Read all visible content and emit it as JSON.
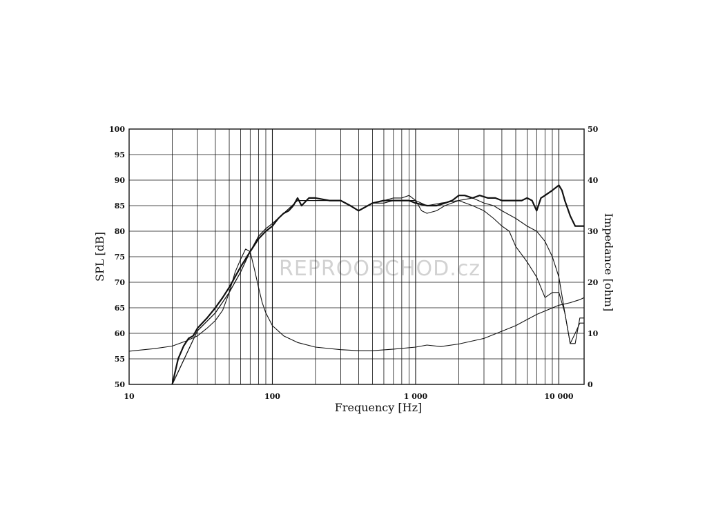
{
  "watermark": "REPROOBCHOD.cz",
  "chart_data": {
    "type": "line",
    "title": "",
    "xlabel": "Frequency [Hz]",
    "ylabel": "SPL [dB]",
    "y2label": "Impedance [ohm]",
    "xscale": "log",
    "xlim": [
      10,
      15000
    ],
    "ylim": [
      50,
      100
    ],
    "y2lim": [
      0,
      50
    ],
    "grid": true,
    "legend": "none",
    "x_tick_labels": [
      {
        "value": 10,
        "label": "10"
      },
      {
        "value": 100,
        "label": "100"
      },
      {
        "value": 1000,
        "label": "1 000"
      },
      {
        "value": 10000,
        "label": "10 000"
      }
    ],
    "y_tick_labels": [
      "50",
      "55",
      "60",
      "65",
      "70",
      "75",
      "80",
      "85",
      "90",
      "95",
      "100"
    ],
    "y2_tick_labels": [
      "0",
      "10",
      "20",
      "30",
      "40",
      "50"
    ],
    "series": [
      {
        "axis": "left",
        "style": "thick",
        "x": [
          20,
          22,
          24,
          26,
          28,
          30,
          35,
          40,
          45,
          50,
          60,
          70,
          80,
          90,
          100,
          110,
          120,
          130,
          140,
          150,
          160,
          180,
          200,
          250,
          300,
          350,
          400,
          500,
          600,
          700,
          800,
          900,
          1000,
          1200,
          1400,
          1600,
          1800,
          2000,
          2200,
          2500,
          2800,
          3200,
          3600,
          4000,
          4500,
          5000,
          5500,
          6000,
          6500,
          7000,
          7500,
          8000,
          9000,
          10000,
          10500,
          11000,
          12000,
          13000,
          14000,
          15000
        ],
        "y": [
          50,
          55,
          57.5,
          59,
          59.5,
          61,
          63,
          65,
          67,
          69,
          73,
          76,
          78.5,
          80,
          81,
          82.5,
          83.5,
          84,
          85,
          86.5,
          85,
          86.5,
          86.5,
          86,
          86,
          85,
          84,
          85.5,
          86,
          86,
          86,
          86,
          85.5,
          85,
          85,
          85.5,
          86,
          87,
          87,
          86.5,
          87,
          86.5,
          86.5,
          86,
          86,
          86,
          86,
          86.5,
          86,
          84,
          86.5,
          87,
          88,
          89,
          88,
          86,
          83,
          81,
          81,
          81
        ]
      },
      {
        "axis": "left",
        "style": "thin",
        "x": [
          20,
          30,
          40,
          50,
          60,
          70,
          80,
          90,
          100,
          120,
          150,
          200,
          300,
          400,
          500,
          600,
          700,
          800,
          900,
          1000,
          1100,
          1200,
          1400,
          1600,
          2000,
          2500,
          3000,
          3500,
          4000,
          4500,
          5000,
          6000,
          7000,
          8000,
          9000,
          10000,
          11000,
          12000,
          13000,
          14000,
          15000
        ],
        "y": [
          50,
          60.5,
          64,
          68,
          72,
          76,
          79,
          80.5,
          81.5,
          83.5,
          86,
          86,
          86,
          84,
          85.5,
          86,
          86.5,
          86.5,
          87,
          86,
          84,
          83.5,
          84,
          85,
          86,
          85,
          84,
          82.5,
          81,
          80,
          77,
          74,
          71,
          67,
          68,
          68,
          64,
          58,
          58,
          63,
          63
        ]
      },
      {
        "axis": "left",
        "style": "thin",
        "x": [
          20,
          30,
          40,
          50,
          60,
          70,
          80,
          90,
          100,
          120,
          150,
          200,
          300,
          400,
          500,
          600,
          700,
          800,
          900,
          1000,
          1200,
          1500,
          2000,
          2500,
          3000,
          3500,
          4000,
          5000,
          6000,
          7000,
          8000,
          9000,
          10000,
          11000,
          12000,
          13000,
          14000,
          15000
        ],
        "y": [
          50,
          60.5,
          64,
          68,
          72,
          76,
          79,
          80.5,
          81.5,
          83.5,
          86,
          86,
          86,
          84,
          85.5,
          85.5,
          86,
          86,
          86,
          86,
          85,
          85.5,
          86,
          86.5,
          85.5,
          85,
          84,
          82.5,
          81,
          80,
          78,
          75,
          71,
          64,
          58,
          60,
          62,
          62
        ]
      },
      {
        "axis": "right",
        "style": "thin",
        "x": [
          10,
          15,
          20,
          25,
          30,
          35,
          40,
          45,
          50,
          55,
          60,
          65,
          70,
          75,
          80,
          85,
          90,
          100,
          120,
          150,
          200,
          300,
          400,
          500,
          700,
          1000,
          1200,
          1500,
          2000,
          3000,
          5000,
          7000,
          10000,
          12000,
          14000,
          15000
        ],
        "y": [
          6.5,
          7,
          7.5,
          8.5,
          9.5,
          11,
          12.5,
          14.5,
          18,
          22,
          24.5,
          26.5,
          26,
          22.5,
          19,
          16,
          14,
          11.5,
          9.5,
          8.2,
          7.3,
          6.8,
          6.6,
          6.6,
          6.9,
          7.3,
          7.7,
          7.4,
          7.9,
          9,
          11.5,
          13.7,
          15.5,
          16,
          16.6,
          17
        ]
      }
    ]
  }
}
